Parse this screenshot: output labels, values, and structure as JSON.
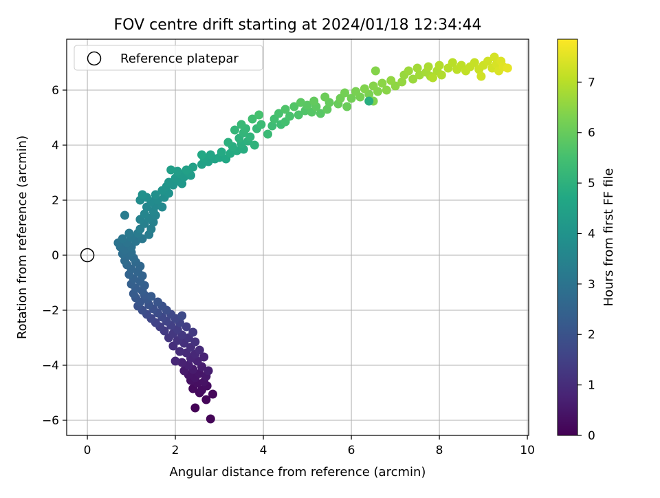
{
  "chart_data": {
    "type": "scatter",
    "title": "FOV centre drift starting at 2024/01/18 12:34:44",
    "xlabel": "Angular distance from reference (arcmin)",
    "ylabel": "Rotation from reference (arcmin)",
    "xlim": [
      -0.47,
      10.03
    ],
    "ylim": [
      -6.55,
      7.85
    ],
    "xticks": [
      0,
      2,
      4,
      6,
      8,
      10
    ],
    "yticks": [
      -6,
      -4,
      -2,
      0,
      2,
      4,
      6
    ],
    "grid": true,
    "legend": {
      "position": "top-left",
      "entries": [
        "Reference platepar"
      ]
    },
    "reference_point": {
      "x": 0,
      "y": 0,
      "label": "Reference platepar"
    },
    "colorbar": {
      "label": "Hours from first FF file",
      "range": [
        0,
        7.85
      ],
      "ticks": [
        0,
        1,
        2,
        3,
        4,
        5,
        6,
        7
      ],
      "colormap": "viridis"
    },
    "series": [
      {
        "points": [
          [
            2.45,
            -5.55,
            0.05
          ],
          [
            2.8,
            -5.95,
            0.08
          ],
          [
            2.7,
            -5.25,
            0.12
          ],
          [
            2.85,
            -5.05,
            0.15
          ],
          [
            2.55,
            -5.0,
            0.18
          ],
          [
            2.4,
            -4.85,
            0.22
          ],
          [
            2.6,
            -4.9,
            0.25
          ],
          [
            2.72,
            -4.75,
            0.28
          ],
          [
            2.5,
            -4.65,
            0.32
          ],
          [
            2.35,
            -4.55,
            0.35
          ],
          [
            2.65,
            -4.6,
            0.38
          ],
          [
            2.45,
            -4.45,
            0.42
          ],
          [
            2.3,
            -4.35,
            0.45
          ],
          [
            2.55,
            -4.3,
            0.48
          ],
          [
            2.7,
            -4.4,
            0.52
          ],
          [
            2.2,
            -4.2,
            0.55
          ],
          [
            2.4,
            -4.15,
            0.58
          ],
          [
            2.6,
            -4.05,
            0.62
          ],
          [
            2.75,
            -4.2,
            0.65
          ],
          [
            2.3,
            -4.0,
            0.68
          ],
          [
            2.15,
            -3.9,
            0.72
          ],
          [
            2.5,
            -3.85,
            0.75
          ],
          [
            2.65,
            -3.7,
            0.78
          ],
          [
            2.35,
            -3.75,
            0.82
          ],
          [
            2.0,
            -3.85,
            0.85
          ],
          [
            2.45,
            -3.6,
            0.88
          ],
          [
            2.25,
            -3.55,
            0.92
          ],
          [
            2.55,
            -3.45,
            0.95
          ],
          [
            2.1,
            -3.5,
            0.98
          ],
          [
            2.35,
            -3.35,
            1.02
          ],
          [
            1.95,
            -3.3,
            1.05
          ],
          [
            2.2,
            -3.2,
            1.08
          ],
          [
            2.45,
            -3.15,
            1.12
          ],
          [
            2.05,
            -3.1,
            1.15
          ],
          [
            2.3,
            -3.0,
            1.18
          ],
          [
            1.85,
            -3.0,
            1.22
          ],
          [
            2.15,
            -2.9,
            1.25
          ],
          [
            1.95,
            -2.85,
            1.28
          ],
          [
            2.4,
            -2.8,
            1.32
          ],
          [
            1.75,
            -2.75,
            1.35
          ],
          [
            2.05,
            -2.7,
            1.38
          ],
          [
            2.25,
            -2.6,
            1.42
          ],
          [
            1.65,
            -2.6,
            1.45
          ],
          [
            1.9,
            -2.55,
            1.48
          ],
          [
            2.1,
            -2.45,
            1.52
          ],
          [
            1.55,
            -2.45,
            1.55
          ],
          [
            1.8,
            -2.4,
            1.58
          ],
          [
            2.0,
            -2.3,
            1.62
          ],
          [
            1.45,
            -2.3,
            1.65
          ],
          [
            1.7,
            -2.25,
            1.68
          ],
          [
            1.9,
            -2.15,
            1.72
          ],
          [
            2.15,
            -2.2,
            1.75
          ],
          [
            1.35,
            -2.15,
            1.78
          ],
          [
            1.6,
            -2.1,
            1.82
          ],
          [
            1.8,
            -2.0,
            1.85
          ],
          [
            1.25,
            -2.0,
            1.88
          ],
          [
            1.5,
            -1.95,
            1.92
          ],
          [
            1.7,
            -1.85,
            1.95
          ],
          [
            1.15,
            -1.85,
            1.98
          ],
          [
            1.4,
            -1.8,
            2.02
          ],
          [
            1.6,
            -1.7,
            2.05
          ],
          [
            1.2,
            -1.7,
            2.08
          ],
          [
            1.35,
            -1.6,
            2.12
          ],
          [
            1.1,
            -1.55,
            2.15
          ],
          [
            1.3,
            -1.45,
            2.18
          ],
          [
            1.45,
            -1.5,
            2.22
          ],
          [
            1.05,
            -1.4,
            2.25
          ],
          [
            1.25,
            -1.3,
            2.28
          ],
          [
            1.1,
            -1.2,
            2.32
          ],
          [
            1.3,
            -1.1,
            2.35
          ],
          [
            1.0,
            -1.05,
            2.38
          ],
          [
            1.2,
            -0.95,
            2.42
          ],
          [
            1.05,
            -0.85,
            2.45
          ],
          [
            1.25,
            -0.75,
            2.48
          ],
          [
            0.95,
            -0.7,
            2.52
          ],
          [
            1.15,
            -0.6,
            2.55
          ],
          [
            1.0,
            -0.5,
            2.58
          ],
          [
            1.2,
            -0.4,
            2.62
          ],
          [
            0.9,
            -0.35,
            2.65
          ],
          [
            1.1,
            -0.25,
            2.68
          ],
          [
            0.85,
            -0.2,
            2.72
          ],
          [
            1.05,
            -0.1,
            2.75
          ],
          [
            0.95,
            0.0,
            2.78
          ],
          [
            0.8,
            0.05,
            2.82
          ],
          [
            1.0,
            0.1,
            2.85
          ],
          [
            0.85,
            0.2,
            2.88
          ],
          [
            0.75,
            0.3,
            2.92
          ],
          [
            1.0,
            0.3,
            2.95
          ],
          [
            0.7,
            0.45,
            2.98
          ],
          [
            0.9,
            0.45,
            3.02
          ],
          [
            1.1,
            0.5,
            3.05
          ],
          [
            0.8,
            0.6,
            3.08
          ],
          [
            1.0,
            0.65,
            3.12
          ],
          [
            1.25,
            0.6,
            3.15
          ],
          [
            0.95,
            0.8,
            3.18
          ],
          [
            1.15,
            0.8,
            3.22
          ],
          [
            1.4,
            0.75,
            3.25
          ],
          [
            0.85,
            1.45,
            3.28
          ],
          [
            1.2,
            0.95,
            3.32
          ],
          [
            1.45,
            0.95,
            3.35
          ],
          [
            1.3,
            1.15,
            3.38
          ],
          [
            1.5,
            1.2,
            3.42
          ],
          [
            1.2,
            1.3,
            3.45
          ],
          [
            1.4,
            1.35,
            3.48
          ],
          [
            1.55,
            1.45,
            3.52
          ],
          [
            1.3,
            1.5,
            3.55
          ],
          [
            1.5,
            1.6,
            3.58
          ],
          [
            1.35,
            1.75,
            3.62
          ],
          [
            1.55,
            1.8,
            3.65
          ],
          [
            1.7,
            1.75,
            3.68
          ],
          [
            1.45,
            1.95,
            3.72
          ],
          [
            1.6,
            2.0,
            3.75
          ],
          [
            1.2,
            2.0,
            3.78
          ],
          [
            1.35,
            2.1,
            3.82
          ],
          [
            1.75,
            2.1,
            3.85
          ],
          [
            1.55,
            2.2,
            3.88
          ],
          [
            1.25,
            2.2,
            3.92
          ],
          [
            1.85,
            2.25,
            3.95
          ],
          [
            1.7,
            2.35,
            3.98
          ],
          [
            1.8,
            2.5,
            4.02
          ],
          [
            1.95,
            2.55,
            4.05
          ],
          [
            1.85,
            2.65,
            4.08
          ],
          [
            2.05,
            2.7,
            4.12
          ],
          [
            2.15,
            2.6,
            4.15
          ],
          [
            2.0,
            2.8,
            4.18
          ],
          [
            2.2,
            2.85,
            4.22
          ],
          [
            2.35,
            2.9,
            4.25
          ],
          [
            2.1,
            2.95,
            4.28
          ],
          [
            2.3,
            3.0,
            4.32
          ],
          [
            2.05,
            3.05,
            4.35
          ],
          [
            1.9,
            3.1,
            4.38
          ],
          [
            2.25,
            3.1,
            4.42
          ],
          [
            2.4,
            3.2,
            4.45
          ],
          [
            2.6,
            3.3,
            4.48
          ],
          [
            2.75,
            3.4,
            4.52
          ],
          [
            2.9,
            3.5,
            4.55
          ],
          [
            2.65,
            3.55,
            4.58
          ],
          [
            2.8,
            3.65,
            4.62
          ],
          [
            3.0,
            3.55,
            4.65
          ],
          [
            3.15,
            3.5,
            4.68
          ],
          [
            2.6,
            3.65,
            4.72
          ],
          [
            3.05,
            3.75,
            4.75
          ],
          [
            3.25,
            3.7,
            4.78
          ],
          [
            3.4,
            3.8,
            4.82
          ],
          [
            3.55,
            3.85,
            4.85
          ],
          [
            3.3,
            3.95,
            4.88
          ],
          [
            3.5,
            4.05,
            4.92
          ],
          [
            3.2,
            4.1,
            4.95
          ],
          [
            3.65,
            4.15,
            4.98
          ],
          [
            3.45,
            4.25,
            5.02
          ],
          [
            3.8,
            4.0,
            5.05
          ],
          [
            3.7,
            4.3,
            5.08
          ],
          [
            3.55,
            4.45,
            5.12
          ],
          [
            3.35,
            4.55,
            5.15
          ],
          [
            3.6,
            4.6,
            5.18
          ],
          [
            3.85,
            4.6,
            5.22
          ],
          [
            3.5,
            4.75,
            5.25
          ],
          [
            4.1,
            4.4,
            5.28
          ],
          [
            3.95,
            4.75,
            5.32
          ],
          [
            4.2,
            4.7,
            5.35
          ],
          [
            4.4,
            4.75,
            5.38
          ],
          [
            3.75,
            4.95,
            5.42
          ],
          [
            4.25,
            4.95,
            5.45
          ],
          [
            4.5,
            4.85,
            5.48
          ],
          [
            3.9,
            5.1,
            5.52
          ],
          [
            4.35,
            5.15,
            5.55
          ],
          [
            4.6,
            5.05,
            5.58
          ],
          [
            4.8,
            5.1,
            5.62
          ],
          [
            4.5,
            5.3,
            5.65
          ],
          [
            4.95,
            5.25,
            5.68
          ],
          [
            4.7,
            5.4,
            5.72
          ],
          [
            5.1,
            5.2,
            5.75
          ],
          [
            5.3,
            5.15,
            5.78
          ],
          [
            5.0,
            5.45,
            5.82
          ],
          [
            4.85,
            5.55,
            5.85
          ],
          [
            5.2,
            5.4,
            5.88
          ],
          [
            5.45,
            5.3,
            5.92
          ],
          [
            5.15,
            5.6,
            5.95
          ],
          [
            5.5,
            5.55,
            5.98
          ],
          [
            5.7,
            5.5,
            6.02
          ],
          [
            5.9,
            5.4,
            6.05
          ],
          [
            5.4,
            5.75,
            6.08
          ],
          [
            5.75,
            5.7,
            6.12
          ],
          [
            6.0,
            5.7,
            6.15
          ],
          [
            5.85,
            5.9,
            6.18
          ],
          [
            6.2,
            5.75,
            6.22
          ],
          [
            6.1,
            5.95,
            6.25
          ],
          [
            6.4,
            5.85,
            6.28
          ],
          [
            6.5,
            5.6,
            6.32
          ],
          [
            6.3,
            6.05,
            6.35
          ],
          [
            6.6,
            5.95,
            6.38
          ],
          [
            6.5,
            6.15,
            6.42
          ],
          [
            6.8,
            6.0,
            6.45
          ],
          [
            6.7,
            6.25,
            6.48
          ],
          [
            7.0,
            6.15,
            6.52
          ],
          [
            6.9,
            6.35,
            6.55
          ],
          [
            7.15,
            6.3,
            6.58
          ],
          [
            7.2,
            6.55,
            6.62
          ],
          [
            7.4,
            6.4,
            6.65
          ],
          [
            7.3,
            6.7,
            6.68
          ],
          [
            7.55,
            6.55,
            6.72
          ],
          [
            7.5,
            6.8,
            6.75
          ],
          [
            7.7,
            6.65,
            6.78
          ],
          [
            7.8,
            6.5,
            6.82
          ],
          [
            7.75,
            6.85,
            6.85
          ],
          [
            7.95,
            6.7,
            6.88
          ],
          [
            8.05,
            6.55,
            6.92
          ],
          [
            8.0,
            6.9,
            6.95
          ],
          [
            8.2,
            6.8,
            6.98
          ],
          [
            8.3,
            7.0,
            7.02
          ],
          [
            8.4,
            6.75,
            7.05
          ],
          [
            8.5,
            6.9,
            7.08
          ],
          [
            8.6,
            6.7,
            7.12
          ],
          [
            8.7,
            6.85,
            7.15
          ],
          [
            8.8,
            7.0,
            7.18
          ],
          [
            8.9,
            6.75,
            7.22
          ],
          [
            9.0,
            6.9,
            7.25
          ],
          [
            9.1,
            7.05,
            7.28
          ],
          [
            9.2,
            6.8,
            7.32
          ],
          [
            9.25,
            7.2,
            7.35
          ],
          [
            9.3,
            6.95,
            7.38
          ],
          [
            9.35,
            6.7,
            7.42
          ],
          [
            9.4,
            7.05,
            7.45
          ],
          [
            9.45,
            6.85,
            7.5
          ],
          [
            9.55,
            6.8,
            7.55
          ],
          [
            6.4,
            5.6,
            4.9
          ],
          [
            6.55,
            6.7,
            6.4
          ],
          [
            7.85,
            6.45,
            6.95
          ],
          [
            8.95,
            6.5,
            7.3
          ]
        ]
      }
    ]
  }
}
